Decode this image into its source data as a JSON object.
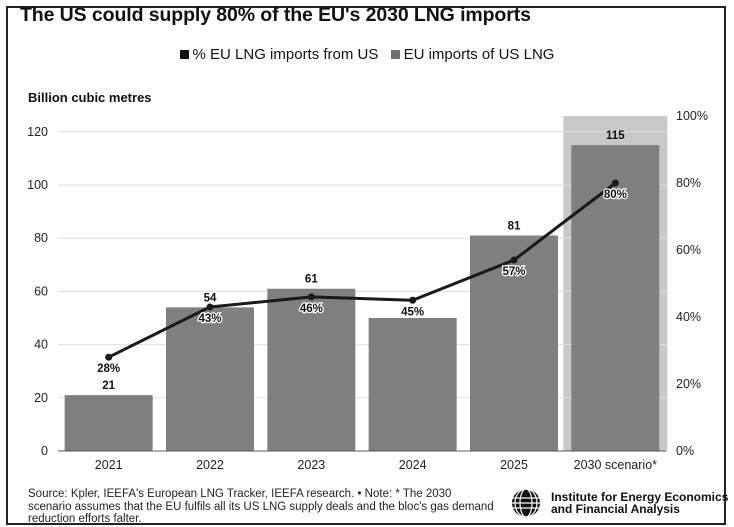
{
  "title": "The US could supply 80% of the EU's 2030 LNG imports",
  "unit_label": "Billion cubic metres",
  "legend": [
    {
      "label": "% EU LNG imports from US",
      "color": "#111111"
    },
    {
      "label": "EU imports of US LNG",
      "color": "#6f6f6f"
    }
  ],
  "source_note": "Source: Kpler, IEEFA's European LNG Tracker, IEEFA research. • Note: * The 2030 scenario assumes that the EU fulfils all its US LNG supply deals and the bloc's gas demand reduction efforts falter.",
  "org_name_line1": "Institute for Energy Economics",
  "org_name_line2": "and Financial Analysis",
  "colors": {
    "bar": "#7f7f80",
    "highlight": "#c8c8c9",
    "line": "#1a1a1a",
    "grid": "#dddddd"
  },
  "chart_data": {
    "type": "bar",
    "categories": [
      "2021",
      "2022",
      "2023",
      "2024",
      "2025",
      "2030 scenario*"
    ],
    "series": [
      {
        "name": "EU imports of US LNG",
        "values": [
          21,
          54,
          61,
          50,
          81,
          115
        ],
        "value_labels": [
          "21",
          "54",
          "61",
          "",
          "81",
          "115"
        ]
      },
      {
        "name": "% EU LNG imports from US",
        "type": "line",
        "axis": "right",
        "values": [
          28,
          43,
          46,
          45,
          57,
          80
        ],
        "value_labels": [
          "28%",
          "43%",
          "46%",
          "45%",
          "57%",
          "80%"
        ]
      }
    ],
    "ylabel": "Billion cubic metres",
    "ylim": [
      0,
      125
    ],
    "y_ticks": [
      0,
      20,
      40,
      60,
      80,
      100,
      120
    ],
    "y2lim": [
      0,
      100
    ],
    "y2_ticks": [
      "0%",
      "20%",
      "40%",
      "60%",
      "80%",
      "100%"
    ],
    "highlight_category": "2030 scenario*",
    "grid": true
  }
}
